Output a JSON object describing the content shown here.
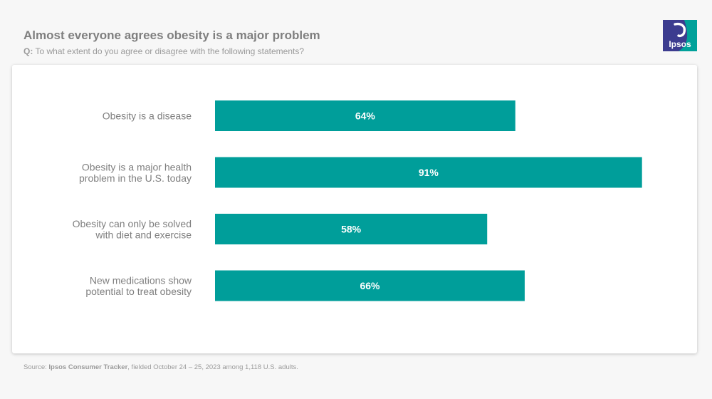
{
  "header": {
    "title": "Almost everyone agrees obesity is a major problem",
    "question_prefix": "Q:",
    "question_text": "To what extent do you agree or disagree with the following statements?"
  },
  "logo": {
    "text": "Ipsos",
    "colors": {
      "primary": "#3c3c8f",
      "accent": "#00a19a"
    }
  },
  "source": {
    "prefix": "Source: ",
    "name": "Ipsos Consumer Tracker",
    "suffix": ", fielded October 24 – 25, 2023 among 1,118 U.S. adults."
  },
  "chart_data": {
    "type": "bar",
    "orientation": "horizontal",
    "categories": [
      [
        "Obesity is a disease"
      ],
      [
        "Obesity is a major health",
        "problem in the U.S. today"
      ],
      [
        "Obesity can only be solved",
        "with diet and exercise"
      ],
      [
        "New medications show",
        "potential to treat obesity"
      ]
    ],
    "values": [
      64,
      91,
      58,
      66
    ],
    "value_labels": [
      "64%",
      "91%",
      "58%",
      "66%"
    ],
    "xlim": [
      0,
      100
    ],
    "bar_color": "#009e9a",
    "label_color": "#ffffff",
    "grid": false
  }
}
